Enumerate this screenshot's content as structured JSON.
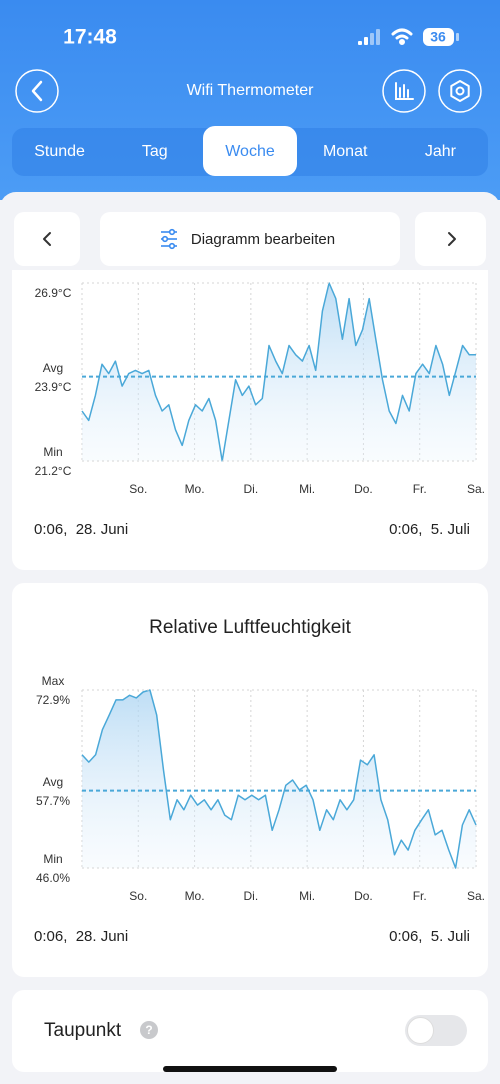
{
  "status_bar": {
    "time": "17:48",
    "battery": "36"
  },
  "header": {
    "title": "Wifi Thermometer"
  },
  "tabs": [
    "Stunde",
    "Tag",
    "Woche",
    "Monat",
    "Jahr"
  ],
  "active_tab": 2,
  "toolbar": {
    "edit_label": "Diagramm bearbeiten"
  },
  "charts": [
    {
      "type": "line",
      "color": "#4aa8d8",
      "ylim": [
        21.2,
        26.9
      ],
      "yticks": [
        {
          "value": 26.9,
          "label": "26.9°C"
        },
        {
          "value": 23.9,
          "label": "23.9°C",
          "name": "Avg"
        },
        {
          "value": 21.2,
          "label": "21.2°C",
          "name": "Min"
        }
      ],
      "highlight_tick": 1,
      "x_labels": [
        "So.",
        "Mo.",
        "Di.",
        "Mi.",
        "Do.",
        "Fr.",
        "Sa."
      ],
      "start_label": "0:06,  28. Juni",
      "end_label": "0:06,  5. Juli",
      "values": [
        22.8,
        22.5,
        23.3,
        24.3,
        24.0,
        24.4,
        23.6,
        24.0,
        24.1,
        24.0,
        24.1,
        23.3,
        22.8,
        23.0,
        22.2,
        21.7,
        22.5,
        23.0,
        22.8,
        23.2,
        22.5,
        21.2,
        22.5,
        23.8,
        23.3,
        23.6,
        23.0,
        23.2,
        24.9,
        24.4,
        24.0,
        24.9,
        24.6,
        24.4,
        24.9,
        24.1,
        26.0,
        26.9,
        26.4,
        25.1,
        26.4,
        24.9,
        25.4,
        26.4,
        25.1,
        23.8,
        22.8,
        22.4,
        23.3,
        22.8,
        24.0,
        24.3,
        24.0,
        24.9,
        24.3,
        23.3,
        24.1,
        24.9,
        24.6,
        24.6
      ]
    },
    {
      "type": "line",
      "title": "Relative Luftfeuchtigkeit",
      "color": "#4aa8d8",
      "ylim": [
        46.0,
        72.9
      ],
      "yticks": [
        {
          "value": 72.9,
          "label": "72.9%",
          "name": "Max"
        },
        {
          "value": 57.7,
          "label": "57.7%",
          "name": "Avg"
        },
        {
          "value": 46.0,
          "label": "46.0%",
          "name": "Min"
        }
      ],
      "highlight_tick": 1,
      "x_labels": [
        "So.",
        "Mo.",
        "Di.",
        "Mi.",
        "Do.",
        "Fr.",
        "Sa."
      ],
      "start_label": "0:06,  28. Juni",
      "end_label": "0:06,  5. Juli",
      "values": [
        63.1,
        62.0,
        63.1,
        66.9,
        69.1,
        71.4,
        71.4,
        72.1,
        71.7,
        72.6,
        72.9,
        69.1,
        60.8,
        53.3,
        56.3,
        54.8,
        57.0,
        55.5,
        56.3,
        54.8,
        56.3,
        54.0,
        53.3,
        57.0,
        56.3,
        57.0,
        56.3,
        57.0,
        51.7,
        54.8,
        58.5,
        59.3,
        57.8,
        58.5,
        56.3,
        51.7,
        54.8,
        53.3,
        56.3,
        54.8,
        56.3,
        62.3,
        61.6,
        63.1,
        56.3,
        53.3,
        48.0,
        50.2,
        48.7,
        51.7,
        53.3,
        54.8,
        51.0,
        51.7,
        48.7,
        46.0,
        52.5,
        54.8,
        52.5
      ]
    }
  ],
  "dewpoint": {
    "label": "Taupunkt",
    "help": "?",
    "enabled": false
  }
}
